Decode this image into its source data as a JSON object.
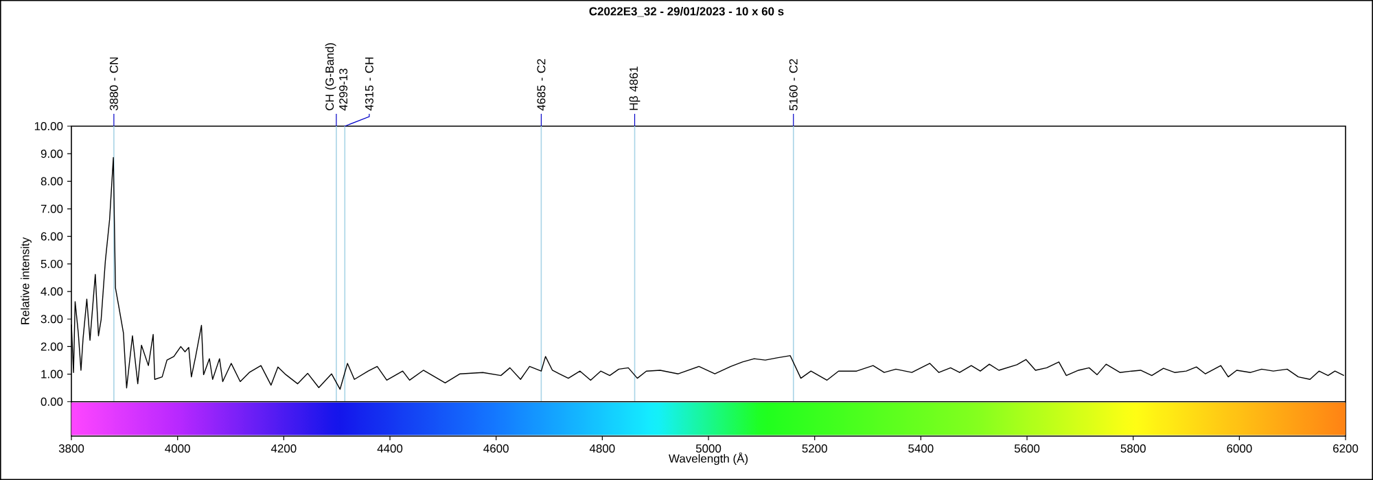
{
  "chart_data": {
    "type": "line",
    "title": "C2022E3_32 - 29/01/2023 - 10 x 60 s",
    "xlabel": "Wavelength (Å)",
    "ylabel": "Relative intensity",
    "xlim": [
      3800,
      6200
    ],
    "ylim": [
      -1.25,
      10
    ],
    "xticks": [
      3800,
      4000,
      4200,
      4400,
      4600,
      4800,
      5000,
      5200,
      5400,
      5600,
      5800,
      6000,
      6200
    ],
    "yticks": [
      {
        "value": 0,
        "label": "0.00"
      },
      {
        "value": 1,
        "label": "1.00"
      },
      {
        "value": 2,
        "label": "2.00"
      },
      {
        "value": 3,
        "label": "3.00"
      },
      {
        "value": 4,
        "label": "4.00"
      },
      {
        "value": 5,
        "label": "5.00"
      },
      {
        "value": 6,
        "label": "6.00"
      },
      {
        "value": 7,
        "label": "7.00"
      },
      {
        "value": 8,
        "label": "8.00"
      },
      {
        "value": 9,
        "label": "9.00"
      },
      {
        "value": 10,
        "label": "10.00"
      }
    ],
    "bands": [
      {
        "axis": "y",
        "from": -1.25,
        "to": 0
      }
    ],
    "ref_lines": [
      {
        "axis": "x",
        "value": 3880,
        "label": "3880 - CN",
        "color": "#a8d4e6"
      },
      {
        "axis": "x",
        "value": 4299,
        "label": "CH (G-Band) 4299-13",
        "color": "#a8d4e6"
      },
      {
        "axis": "x",
        "value": 4315,
        "label": "4315 - CH",
        "color": "#a8d4e6"
      },
      {
        "axis": "x",
        "value": 4685,
        "label": "4685 - C2",
        "color": "#a8d4e6"
      },
      {
        "axis": "x",
        "value": 4861,
        "label": "Hβ 4861",
        "color": "#a8d4e6"
      },
      {
        "axis": "x",
        "value": 5160,
        "label": "5160 - C2",
        "color": "#a8d4e6"
      }
    ],
    "series": [
      {
        "color": "#000000",
        "x": [
          3800,
          3804,
          3807,
          3813,
          3818,
          3822,
          3829,
          3835,
          3845,
          3851,
          3856,
          3864,
          3872,
          3879,
          3883,
          3889,
          3898,
          3904,
          3915,
          3925,
          3932,
          3945,
          3954,
          3957,
          3971,
          3980,
          3993,
          4006,
          4014,
          4021,
          4026,
          4034,
          4045,
          4049,
          4060,
          4066,
          4079,
          4085,
          4101,
          4118,
          4135,
          4157,
          4176,
          4189,
          4204,
          4226,
          4245,
          4266,
          4290,
          4306,
          4320,
          4333,
          4359,
          4376,
          4394,
          4424,
          4437,
          4463,
          4504,
          4532,
          4575,
          4609,
          4626,
          4646,
          4663,
          4685,
          4693,
          4706,
          4719,
          4736,
          4758,
          4778,
          4797,
          4814,
          4831,
          4849,
          4866,
          4883,
          4909,
          4943,
          4982,
          5012,
          5042,
          5064,
          5086,
          5107,
          5129,
          5154,
          5174,
          5193,
          5223,
          5245,
          5279,
          5310,
          5331,
          5353,
          5383,
          5417,
          5434,
          5456,
          5473,
          5495,
          5512,
          5529,
          5547,
          5581,
          5598,
          5616,
          5637,
          5660,
          5674,
          5697,
          5717,
          5732,
          5749,
          5775,
          5797,
          5814,
          5835,
          5857,
          5878,
          5900,
          5919,
          5936,
          5965,
          5979,
          5995,
          6021,
          6042,
          6064,
          6090,
          6111,
          6133,
          6150,
          6167,
          6180,
          6197
        ],
        "values": [
          2.8,
          1.06,
          3.63,
          2.49,
          1.14,
          2.3,
          3.72,
          2.23,
          4.62,
          2.39,
          2.98,
          5.12,
          6.62,
          8.86,
          4.13,
          3.48,
          2.49,
          0.5,
          2.39,
          0.65,
          2.05,
          1.31,
          2.44,
          0.81,
          0.9,
          1.51,
          1.64,
          2.0,
          1.81,
          1.97,
          0.9,
          1.64,
          2.77,
          0.98,
          1.56,
          0.81,
          1.56,
          0.73,
          1.39,
          0.73,
          1.06,
          1.31,
          0.6,
          1.26,
          0.98,
          0.65,
          1.03,
          0.51,
          1.01,
          0.45,
          1.39,
          0.81,
          1.11,
          1.28,
          0.78,
          1.11,
          0.78,
          1.14,
          0.68,
          1.01,
          1.06,
          0.95,
          1.23,
          0.81,
          1.28,
          1.11,
          1.64,
          1.14,
          1.01,
          0.85,
          1.11,
          0.78,
          1.11,
          0.95,
          1.18,
          1.23,
          0.85,
          1.11,
          1.14,
          1.01,
          1.28,
          1.01,
          1.28,
          1.44,
          1.56,
          1.51,
          1.59,
          1.67,
          0.85,
          1.11,
          0.78,
          1.11,
          1.11,
          1.31,
          1.06,
          1.18,
          1.06,
          1.39,
          1.06,
          1.23,
          1.06,
          1.31,
          1.11,
          1.36,
          1.14,
          1.34,
          1.53,
          1.14,
          1.23,
          1.44,
          0.95,
          1.14,
          1.23,
          0.98,
          1.36,
          1.06,
          1.11,
          1.14,
          0.95,
          1.21,
          1.06,
          1.11,
          1.26,
          1.01,
          1.31,
          0.9,
          1.14,
          1.06,
          1.18,
          1.11,
          1.18,
          0.9,
          0.81,
          1.11,
          0.95,
          1.11,
          0.95
        ]
      }
    ]
  }
}
